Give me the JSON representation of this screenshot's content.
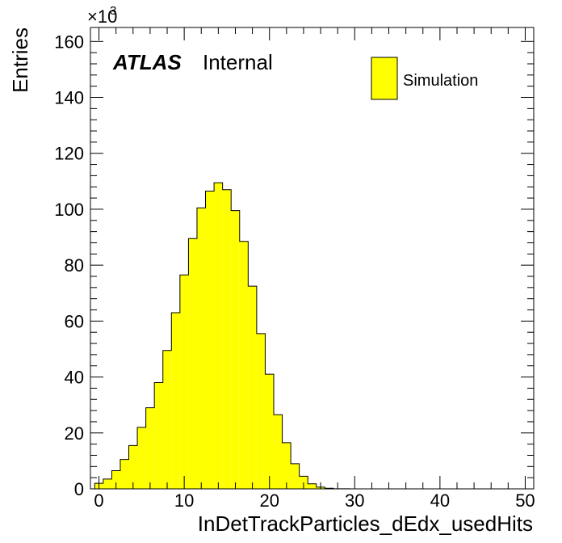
{
  "chart_data": {
    "type": "bar",
    "style": "histogram",
    "xlabel": "InDetTrackParticles_dEdx_usedHits",
    "ylabel": "Entries",
    "y_multiplier": "×10",
    "y_multiplier_exponent": "3",
    "xlim": [
      -1,
      51
    ],
    "ylim": [
      0,
      165
    ],
    "xticks": [
      0,
      10,
      20,
      30,
      40,
      50
    ],
    "yticks": [
      0,
      20,
      40,
      60,
      80,
      100,
      120,
      140,
      160
    ],
    "bin_width": 1,
    "bin_edges_start": -0.5,
    "values": [
      2,
      3.5,
      6.5,
      10.5,
      15.5,
      22,
      29,
      38,
      49.5,
      63,
      76.5,
      89.5,
      100.5,
      106.5,
      109.5,
      107,
      99.5,
      88.5,
      72.5,
      55.5,
      41,
      26.5,
      16.5,
      9,
      4.5,
      1.8,
      0.6,
      0.2,
      0.05,
      0.02
    ],
    "fill_color": "#ffff00",
    "line_color": "#000000",
    "legend": {
      "entries": [
        "Simulation"
      ],
      "position": "top-right"
    },
    "annotation": {
      "bold": "ATLAS",
      "normal": "Internal"
    }
  }
}
